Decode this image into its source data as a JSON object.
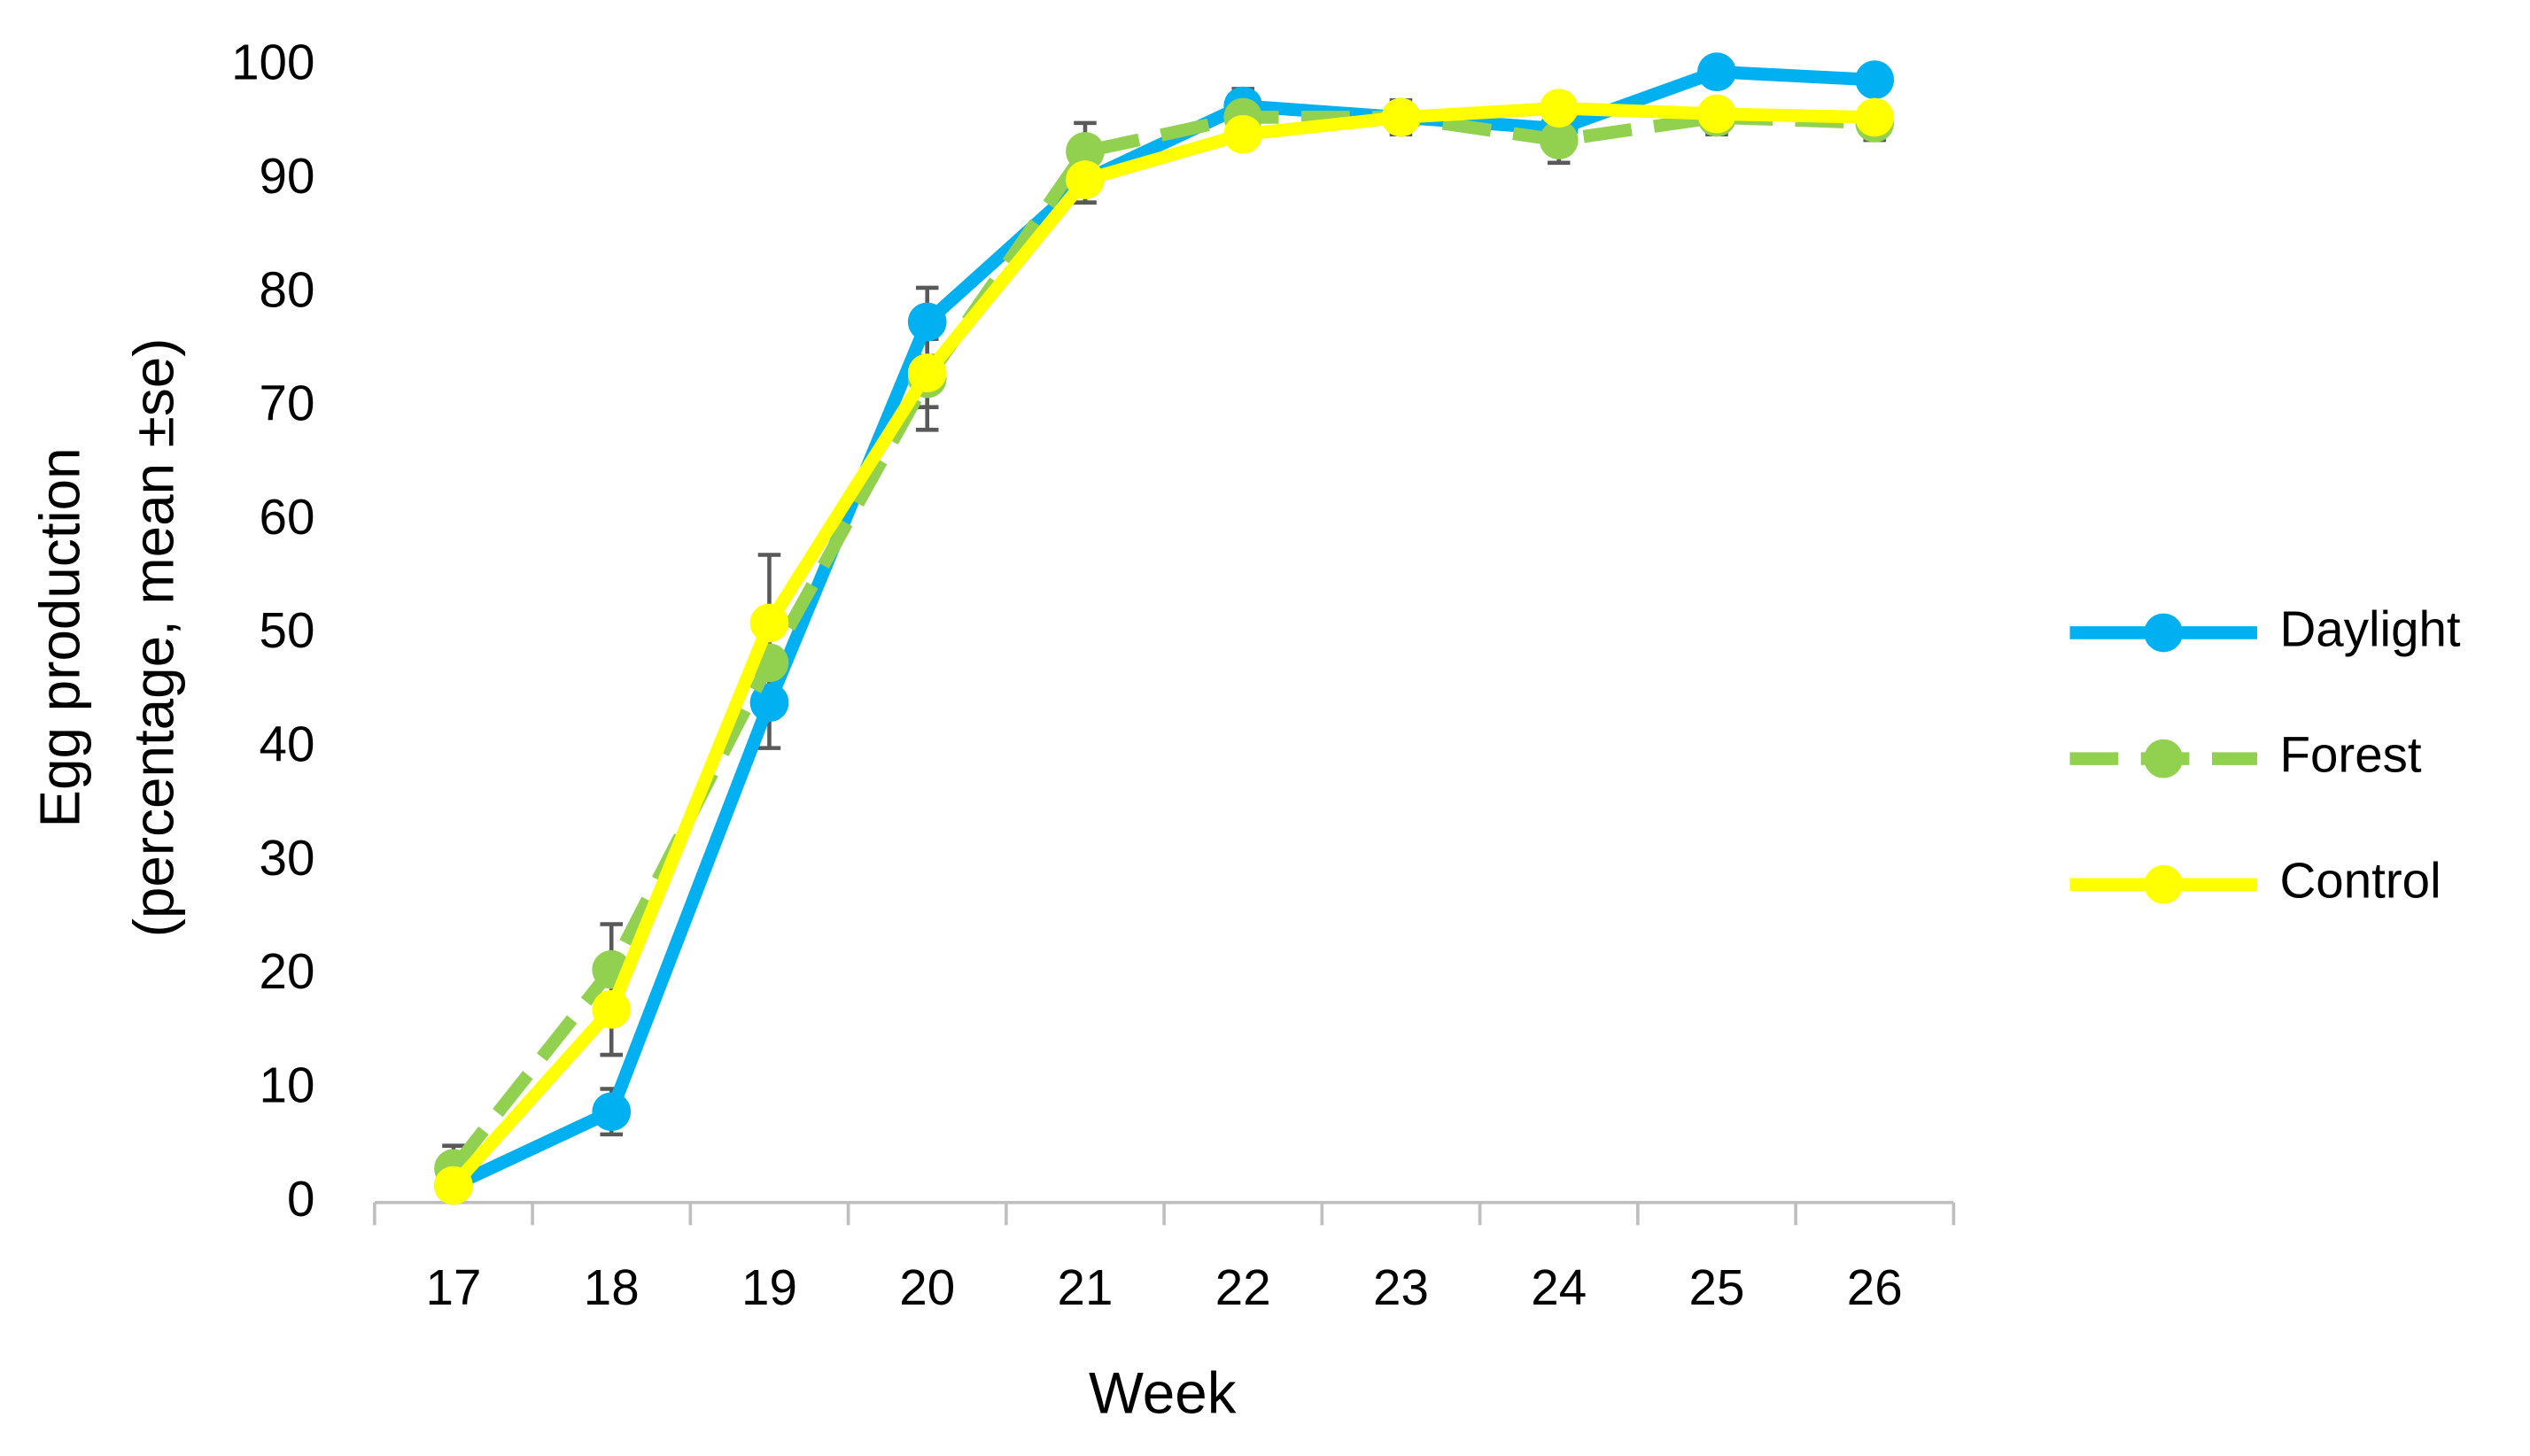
{
  "chart_data": {
    "type": "line",
    "x_label": "Week",
    "y_label_lines": [
      "Egg production",
      "(percentage, mean ±se)"
    ],
    "categories": [
      "17",
      "18",
      "19",
      "20",
      "21",
      "22",
      "23",
      "24",
      "25",
      "26"
    ],
    "series": [
      {
        "name": "Daylight",
        "color": "#00b0f0",
        "dashed": false,
        "values": [
          1.5,
          8,
          44,
          77.5,
          90,
          96.5,
          95.5,
          94.5,
          99.5,
          98.8
        ],
        "errors": [
          1,
          2,
          4,
          3,
          2,
          1.5,
          1,
          1,
          1,
          1
        ]
      },
      {
        "name": "Forest",
        "color": "#92d050",
        "dashed": true,
        "values": [
          3,
          20.5,
          47.5,
          72.5,
          92.5,
          95.5,
          95.5,
          93.5,
          95.5,
          95
        ],
        "errors": [
          2,
          4,
          4,
          4.5,
          2.5,
          1.5,
          1.5,
          2,
          1.5,
          1.5
        ]
      },
      {
        "name": "Control",
        "color": "#ffff00",
        "dashed": false,
        "values": [
          1.5,
          17,
          51,
          73,
          90,
          94,
          95.5,
          96.3,
          95.8,
          95.5
        ],
        "errors": [
          1,
          4,
          6,
          3,
          2,
          1,
          1,
          1,
          1,
          1
        ]
      }
    ],
    "ylim": [
      0,
      100
    ],
    "yticks": [
      0,
      10,
      20,
      30,
      40,
      50,
      60,
      70,
      80,
      90,
      100
    ],
    "grid": false,
    "legend": "right",
    "error_bar_color": "#595959"
  }
}
